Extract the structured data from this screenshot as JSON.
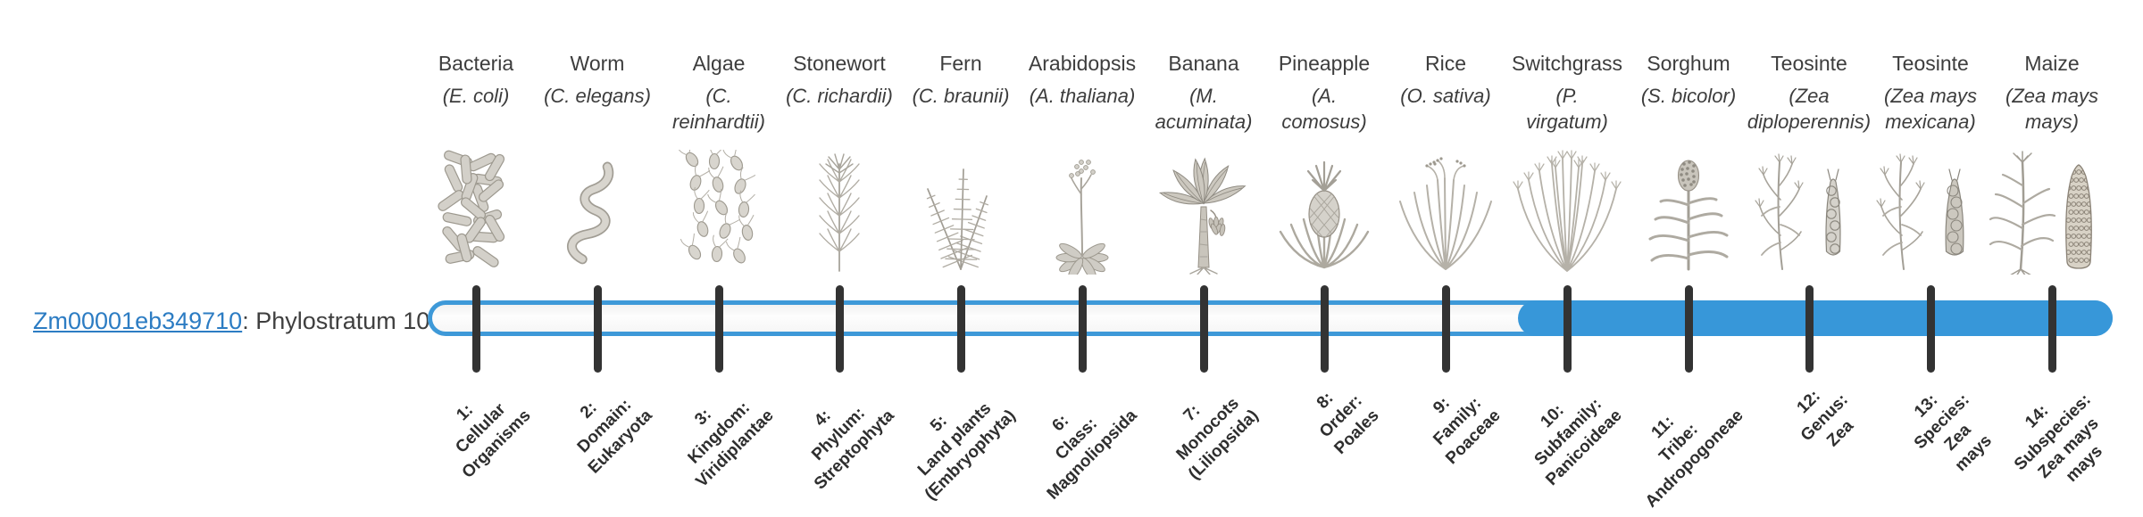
{
  "gene": {
    "id": "Zm00001eb349710",
    "stratum_text": ": Phylostratum 10",
    "phylostratum": 10
  },
  "colors": {
    "link": "#2c7cc3",
    "text": "#3f3f3f",
    "bar_border": "#3e99d8",
    "bar_fill": "#3797d9",
    "tick": "#333333"
  },
  "organisms": [
    {
      "name": "Bacteria",
      "species": "(E. coli)",
      "icon": "bacteria-icon",
      "stratum_label": "1:\nCellular\nOrganisms"
    },
    {
      "name": "Worm",
      "species": "(C. elegans)",
      "icon": "worm-icon",
      "stratum_label": "2:\nDomain:\nEukaryota"
    },
    {
      "name": "Algae",
      "species": "(C.\nreinhardtii)",
      "icon": "algae-icon",
      "stratum_label": "3:\nKingdom:\nViridiplantae"
    },
    {
      "name": "Stonewort",
      "species": "(C. richardii)",
      "icon": "stonewort-icon",
      "stratum_label": "4:\nPhylum:\nStreptophyta"
    },
    {
      "name": "Fern",
      "species": "(C. braunii)",
      "icon": "fern-icon",
      "stratum_label": "5:\nLand plants\n(Embryophyta)"
    },
    {
      "name": "Arabidopsis",
      "species": "(A. thaliana)",
      "icon": "arabidopsis-icon",
      "stratum_label": "6:\nClass:\nMagnoliopsida"
    },
    {
      "name": "Banana",
      "species": "(M.\nacuminata)",
      "icon": "banana-icon",
      "stratum_label": "7:\nMonocots\n(Liliopsida)"
    },
    {
      "name": "Pineapple",
      "species": "(A.\ncomosus)",
      "icon": "pineapple-icon",
      "stratum_label": "8:\nOrder:\nPoales"
    },
    {
      "name": "Rice",
      "species": "(O. sativa)",
      "icon": "rice-icon",
      "stratum_label": "9:\nFamily:\nPoaceae"
    },
    {
      "name": "Switchgrass",
      "species": "(P.\nvirgatum)",
      "icon": "switchgrass-icon",
      "stratum_label": "10:\nSubfamily:\nPanicoideae"
    },
    {
      "name": "Sorghum",
      "species": "(S. bicolor)",
      "icon": "sorghum-icon",
      "stratum_label": "11:\nTribe:\nAndropogoneae"
    },
    {
      "name": "Teosinte",
      "species": "(Zea\ndiploperennis)",
      "icon": "teosinte-diploperennis-icon",
      "stratum_label": "12:\nGenus:\nZea"
    },
    {
      "name": "Teosinte",
      "species": "(Zea mays\nmexicana)",
      "icon": "teosinte-mexicana-icon",
      "stratum_label": "13:\nSpecies:\nZea\nmays"
    },
    {
      "name": "Maize",
      "species": "(Zea mays\nmays)",
      "icon": "maize-icon",
      "stratum_label": "14:\nSubspecies:\nZea mays\nmays"
    }
  ]
}
